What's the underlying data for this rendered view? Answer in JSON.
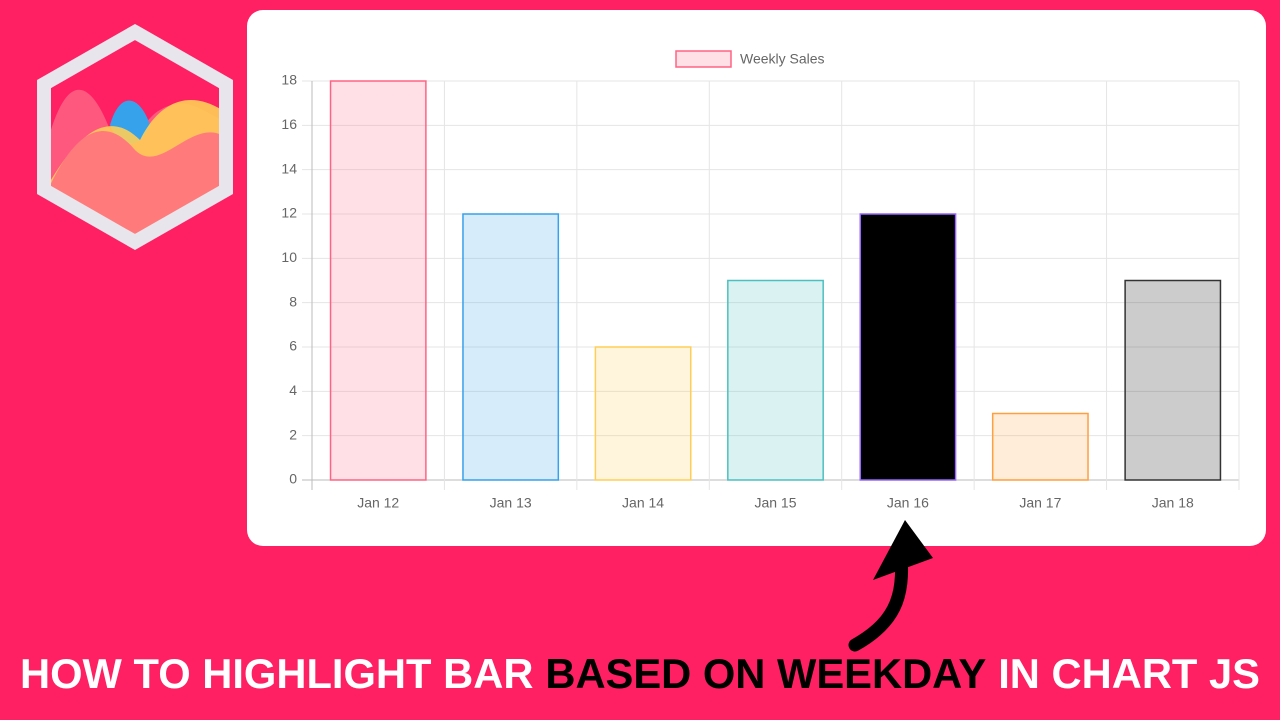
{
  "chart_data": {
    "type": "bar",
    "legend_position": "top",
    "categories": [
      "Jan 12",
      "Jan 13",
      "Jan 14",
      "Jan 15",
      "Jan 16",
      "Jan 17",
      "Jan 18"
    ],
    "series": [
      {
        "name": "Weekly Sales",
        "values": [
          18,
          12,
          6,
          9,
          12,
          3,
          9
        ],
        "colors": [
          "rgba(255,99,132,0.2)",
          "rgba(54,162,235,0.2)",
          "rgba(255,206,86,0.2)",
          "rgba(75,192,192,0.2)",
          "#000000",
          "rgba(255,159,64,0.2)",
          "rgba(0,0,0,0.2)"
        ],
        "border_colors": [
          "#ff6384",
          "#36a2eb",
          "#ffce56",
          "#4bc0c0",
          "#9966ff",
          "#ff9f40",
          "#333333"
        ]
      }
    ],
    "ylim": [
      0,
      18
    ],
    "yticks": [
      0,
      2,
      4,
      6,
      8,
      10,
      12,
      14,
      16,
      18
    ],
    "grid": true
  },
  "headline": [
    {
      "text": "HOW TO HIGHLIGHT BAR",
      "color": "#ffffff"
    },
    {
      "text": "BASED ON WEEKDAY",
      "color": "#000000"
    },
    {
      "text": "IN CHART JS",
      "color": "#ffffff"
    }
  ]
}
